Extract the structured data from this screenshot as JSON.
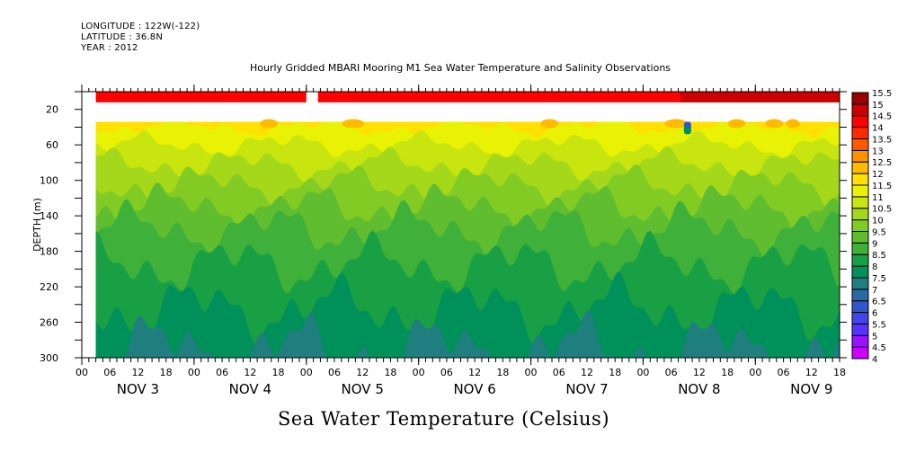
{
  "header": {
    "longitude": "LONGITUDE : 122W(-122)",
    "latitude": "LATITUDE : 36.8N",
    "year": "YEAR : 2012"
  },
  "chart_data": {
    "type": "heatmap",
    "title": "Hourly Gridded MBARI Mooring M1 Sea Water Temperature and Salinity Observations",
    "xlabel": "Sea Water Temperature (Celsius)",
    "ylabel": "DEPTH (m)",
    "ylim": [
      300,
      0
    ],
    "y_inverted": true,
    "yticks": [
      20,
      60,
      100,
      140,
      180,
      220,
      260,
      300
    ],
    "x_range_hours": [
      0,
      162
    ],
    "x_start": "NOV 3 00:00 2012",
    "data_start_hour": 3,
    "xtick_hour_labels": [
      "00",
      "06",
      "12",
      "18",
      "00",
      "06",
      "12",
      "18",
      "00",
      "06",
      "12",
      "18",
      "00",
      "06",
      "12",
      "18",
      "00",
      "06",
      "12",
      "18",
      "00",
      "06",
      "12",
      "18",
      "00",
      "06",
      "12",
      "18"
    ],
    "x_day_labels": [
      "NOV 3",
      "NOV 4",
      "NOV 5",
      "NOV 6",
      "NOV 7",
      "NOV 8",
      "NOV 9"
    ],
    "colorbar": {
      "levels": [
        4,
        4.5,
        5,
        5.5,
        6,
        6.5,
        7,
        7.5,
        8,
        8.5,
        9,
        9.5,
        10,
        10.5,
        11,
        11.5,
        12,
        12.5,
        13,
        13.5,
        14,
        14.5,
        15,
        15.5
      ],
      "labels": [
        "4",
        "4.5",
        "5",
        "5.5",
        "6",
        "6.5",
        "7",
        "7.5",
        "8",
        "8.5",
        "9",
        "9.5",
        "10",
        "10.5",
        "11",
        "11.5",
        "12",
        "12.5",
        "13",
        "13.5",
        "14",
        "14.5",
        "15",
        "15.5"
      ],
      "colors": [
        "#cc00ff",
        "#9911ff",
        "#5533ff",
        "#4444ee",
        "#3355cc",
        "#2a6aa4",
        "#1f7e7e",
        "#00905a",
        "#1aa044",
        "#3fb03a",
        "#60bd30",
        "#82cb24",
        "#a5d81a",
        "#c8e510",
        "#e9f204",
        "#ffe000",
        "#ffbb00",
        "#ff9000",
        "#ff5a00",
        "#ff2a00",
        "#ff0000",
        "#cc0000",
        "#990000"
      ]
    },
    "gaps": {
      "no_data_depth_m": [
        12,
        34
      ],
      "no_data_time_hours": [
        [
          0,
          3
        ],
        [
          48,
          50.5
        ]
      ]
    },
    "surface_layer": {
      "depth_m": [
        0,
        12
      ],
      "value_c": 14.2,
      "warm_patch_late": 14.8
    },
    "anomaly": {
      "time_hours": 129.5,
      "depth_m": [
        34,
        48
      ],
      "min_value_c": 5.5
    },
    "isotherm_depths_m": [
      {
        "level": 11.5,
        "mean_depth": 40
      },
      {
        "level": 11,
        "mean_depth": 60
      },
      {
        "level": 10.5,
        "mean_depth": 82
      },
      {
        "level": 10,
        "mean_depth": 105
      },
      {
        "level": 9.5,
        "mean_depth": 130
      },
      {
        "level": 9,
        "mean_depth": 155
      },
      {
        "level": 8.5,
        "mean_depth": 195
      },
      {
        "level": 8,
        "mean_depth": 245
      },
      {
        "level": 7.5,
        "mean_depth": 290
      }
    ]
  }
}
